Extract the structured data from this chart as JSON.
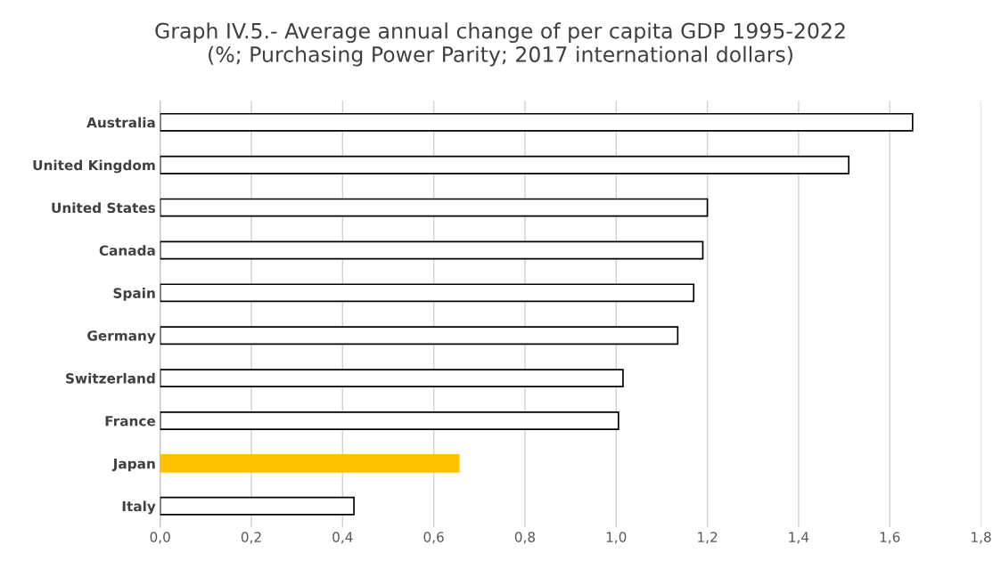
{
  "chart_data": {
    "type": "bar",
    "orientation": "horizontal",
    "title": "Graph IV.5.- Average annual change of per capita GDP 1995-2022\n(%; Purchasing Power Parity; 2017 international dollars)",
    "categories": [
      "Australia",
      "United Kingdom",
      "United States",
      "Canada",
      "Spain",
      "Germany",
      "Switzerland",
      "France",
      "Japan",
      "Italy"
    ],
    "values": [
      1.65,
      1.51,
      1.2,
      1.19,
      1.17,
      1.135,
      1.015,
      1.005,
      0.655,
      0.425
    ],
    "colors": [
      "#ffffff",
      "#ffffff",
      "#ffffff",
      "#ffffff",
      "#ffffff",
      "#ffffff",
      "#ffffff",
      "#ffffff",
      "#ffc000",
      "#ffffff"
    ],
    "xlim": [
      0,
      1.8
    ],
    "xticks": [
      {
        "value": 0,
        "label": "0,0"
      },
      {
        "value": 0.2,
        "label": "0,2"
      },
      {
        "value": 0.4,
        "label": "0,4"
      },
      {
        "value": 0.6,
        "label": "0,6"
      },
      {
        "value": 0.8,
        "label": "0,8"
      },
      {
        "value": 1.0,
        "label": "1,0"
      },
      {
        "value": 1.2,
        "label": "1,2"
      },
      {
        "value": 1.4,
        "label": "1,4"
      },
      {
        "value": 1.6,
        "label": "1,6"
      },
      {
        "value": 1.8,
        "label": "1,8"
      }
    ],
    "grid": "x",
    "legend": false
  }
}
